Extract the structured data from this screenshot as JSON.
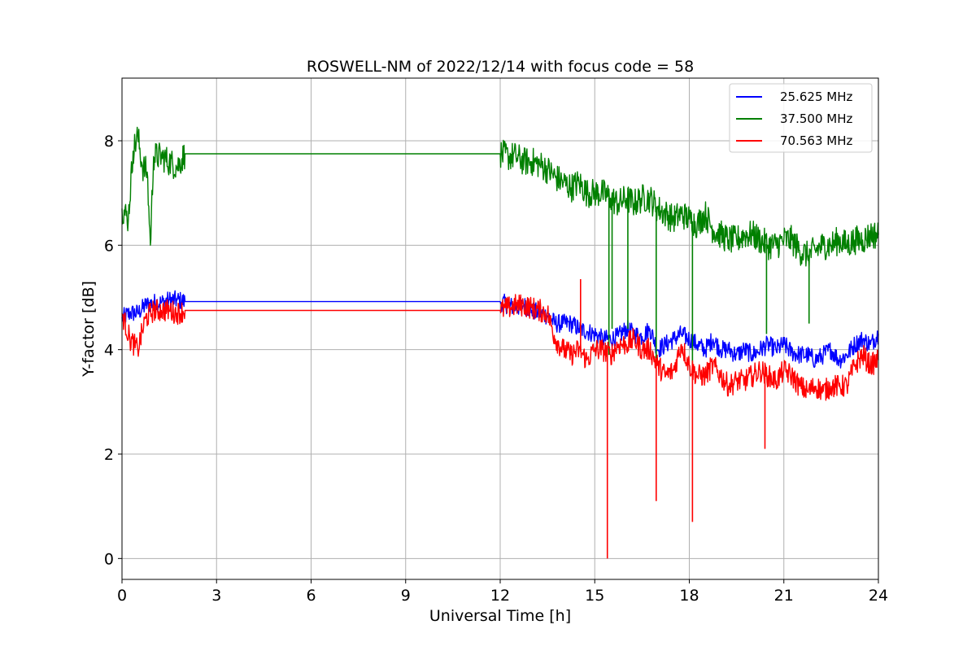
{
  "chart_data": {
    "type": "line",
    "title": "ROSWELL-NM of 2022/12/14 with focus code = 58",
    "xlabel": "Universal Time [h]",
    "ylabel": "Y-factor [dB]",
    "xlim": [
      0,
      24
    ],
    "ylim": [
      -0.4,
      9.2
    ],
    "xticks": [
      0,
      3,
      6,
      9,
      12,
      15,
      18,
      21,
      24
    ],
    "xtick_labels": [
      "0",
      "3",
      "6",
      "9",
      "12",
      "15",
      "18",
      "21",
      "24"
    ],
    "yticks": [
      0,
      2,
      4,
      6,
      8
    ],
    "ytick_labels": [
      "0",
      "2",
      "4",
      "6",
      "8"
    ],
    "grid": true,
    "legend_position": "top-right",
    "series": [
      {
        "name": "25.625 MHz",
        "color": "#0000ff",
        "x": [
          0,
          0.25,
          0.5,
          0.75,
          1.0,
          1.25,
          1.5,
          1.75,
          2.0,
          12.0,
          12.25,
          12.5,
          12.75,
          13.0,
          13.25,
          13.5,
          13.75,
          14.0,
          14.25,
          14.5,
          14.75,
          15.0,
          15.25,
          15.5,
          15.75,
          16.0,
          16.25,
          16.5,
          16.75,
          17.0,
          17.25,
          17.5,
          17.75,
          18.0,
          18.25,
          18.5,
          18.75,
          19.0,
          19.25,
          19.5,
          19.75,
          20.0,
          20.25,
          20.5,
          20.75,
          21.0,
          21.25,
          21.5,
          21.75,
          22.0,
          22.25,
          22.5,
          22.75,
          23.0,
          23.25,
          23.5,
          23.75,
          24.0
        ],
        "y": [
          4.6,
          4.7,
          4.7,
          4.85,
          4.9,
          4.9,
          4.95,
          4.95,
          4.92,
          4.92,
          4.85,
          4.8,
          4.85,
          4.75,
          4.7,
          4.65,
          4.5,
          4.5,
          4.5,
          4.4,
          4.35,
          4.3,
          4.2,
          4.2,
          4.25,
          4.4,
          4.3,
          4.25,
          4.4,
          4.0,
          4.1,
          4.2,
          4.3,
          4.2,
          4.1,
          4.0,
          4.2,
          4.0,
          4.0,
          3.9,
          4.0,
          3.9,
          4.0,
          4.1,
          4.0,
          4.1,
          3.95,
          3.9,
          3.9,
          3.8,
          3.9,
          4.0,
          3.8,
          3.9,
          4.1,
          4.2,
          4.1,
          4.3
        ]
      },
      {
        "name": "37.500 MHz",
        "color": "#008000",
        "x": [
          0,
          0.2,
          0.35,
          0.5,
          0.65,
          0.8,
          0.9,
          1.0,
          1.25,
          1.5,
          1.75,
          2.0,
          12.0,
          12.25,
          12.5,
          12.75,
          13.0,
          13.25,
          13.5,
          13.75,
          14.0,
          14.25,
          14.5,
          14.75,
          15.0,
          15.25,
          15.5,
          15.75,
          16.0,
          16.25,
          16.5,
          16.75,
          17.0,
          17.25,
          17.5,
          17.75,
          18.0,
          18.25,
          18.5,
          18.75,
          19.0,
          19.25,
          19.5,
          19.75,
          20.0,
          20.25,
          20.5,
          20.75,
          21.0,
          21.25,
          21.5,
          21.75,
          22.0,
          22.25,
          22.5,
          22.75,
          23.0,
          23.25,
          23.5,
          23.75,
          24.0
        ],
        "y": [
          6.7,
          6.5,
          7.8,
          8.1,
          7.5,
          7.4,
          6.0,
          7.7,
          7.7,
          7.6,
          7.5,
          7.75,
          7.75,
          7.7,
          7.7,
          7.6,
          7.6,
          7.55,
          7.45,
          7.3,
          7.2,
          7.1,
          7.2,
          7.0,
          7.0,
          7.0,
          6.9,
          6.8,
          6.9,
          6.8,
          6.9,
          6.9,
          6.7,
          6.6,
          6.5,
          6.6,
          6.5,
          6.4,
          6.6,
          6.3,
          6.2,
          6.1,
          6.1,
          6.2,
          6.2,
          6.1,
          6.0,
          6.0,
          6.1,
          6.1,
          5.9,
          5.8,
          5.9,
          6.0,
          6.0,
          6.1,
          6.0,
          6.1,
          6.1,
          6.2,
          6.2
        ]
      },
      {
        "name": "70.563 MHz",
        "color": "#ff0000",
        "x": [
          0,
          0.25,
          0.5,
          0.75,
          1.0,
          1.25,
          1.5,
          1.75,
          2.0,
          12.0,
          12.25,
          12.5,
          12.75,
          13.0,
          13.25,
          13.5,
          13.75,
          14.0,
          14.25,
          14.5,
          14.75,
          15.0,
          15.25,
          15.5,
          15.75,
          16.0,
          16.25,
          16.5,
          16.75,
          17.0,
          17.25,
          17.5,
          17.75,
          18.0,
          18.25,
          18.5,
          18.75,
          19.0,
          19.25,
          19.5,
          19.75,
          20.0,
          20.25,
          20.5,
          20.75,
          21.0,
          21.25,
          21.5,
          21.75,
          22.0,
          22.25,
          22.5,
          22.75,
          23.0,
          23.25,
          23.5,
          23.75,
          24.0
        ],
        "y": [
          4.7,
          4.2,
          4.0,
          4.6,
          4.75,
          4.75,
          4.75,
          4.7,
          4.75,
          4.75,
          4.8,
          4.85,
          4.85,
          4.8,
          4.75,
          4.7,
          4.2,
          4.0,
          3.9,
          4.0,
          3.8,
          4.0,
          4.0,
          3.9,
          4.1,
          4.1,
          4.2,
          4.0,
          4.0,
          3.7,
          3.5,
          3.6,
          4.1,
          3.7,
          3.5,
          3.5,
          3.7,
          3.5,
          3.3,
          3.4,
          3.4,
          3.5,
          3.6,
          3.5,
          3.4,
          3.6,
          3.5,
          3.3,
          3.2,
          3.3,
          3.2,
          3.3,
          3.3,
          3.3,
          3.7,
          3.9,
          3.7,
          3.8
        ]
      }
    ],
    "spikes": [
      {
        "series": "37.500 MHz",
        "x": 15.45,
        "y": 3.9
      },
      {
        "series": "37.500 MHz",
        "x": 15.55,
        "y": 4.4
      },
      {
        "series": "37.500 MHz",
        "x": 16.05,
        "y": 4.4
      },
      {
        "series": "37.500 MHz",
        "x": 16.95,
        "y": 3.8
      },
      {
        "series": "37.500 MHz",
        "x": 18.1,
        "y": 3.7
      },
      {
        "series": "37.500 MHz",
        "x": 20.45,
        "y": 4.3
      },
      {
        "series": "37.500 MHz",
        "x": 21.8,
        "y": 4.5
      },
      {
        "series": "70.563 MHz",
        "x": 15.4,
        "y": 0.0
      },
      {
        "series": "70.563 MHz",
        "x": 16.95,
        "y": 1.1
      },
      {
        "series": "70.563 MHz",
        "x": 18.1,
        "y": 0.7
      },
      {
        "series": "70.563 MHz",
        "x": 20.4,
        "y": 2.1
      },
      {
        "series": "70.563 MHz",
        "x": 14.55,
        "y": 5.35
      }
    ]
  }
}
